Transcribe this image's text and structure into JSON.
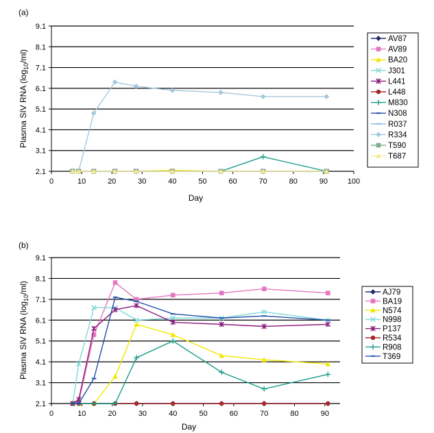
{
  "chart_data": [
    {
      "panel_label": "(a)",
      "type": "line",
      "xlabel": "Day",
      "ylabel": "Plasma SIV RNA (log10/ml)",
      "ylim": [
        2.1,
        9.1
      ],
      "xlim": [
        0,
        100
      ],
      "yticks": [
        "2.1",
        "3.1",
        "4.1",
        "5.1",
        "6.1",
        "7.1",
        "8.1",
        "9.1"
      ],
      "xticks": [
        "0",
        "10",
        "20",
        "30",
        "40",
        "50",
        "60",
        "70",
        "80",
        "90",
        "100"
      ],
      "grid": "horizontal",
      "legend_position": "right",
      "series": [
        {
          "name": "AV87",
          "color": "#1f2a6b",
          "marker": "diamond",
          "x": [
            7,
            9,
            14,
            21,
            28,
            40,
            56,
            70,
            91
          ],
          "y": [
            2.1,
            2.1,
            2.1,
            2.1,
            2.1,
            2.1,
            2.1,
            2.1,
            2.1
          ]
        },
        {
          "name": "AV89",
          "color": "#e377c2",
          "marker": "square",
          "x": [
            7,
            9,
            14,
            21,
            28,
            40,
            56,
            70,
            91
          ],
          "y": [
            2.1,
            2.1,
            2.1,
            2.1,
            2.1,
            2.1,
            2.1,
            2.1,
            2.1
          ]
        },
        {
          "name": "BA20",
          "color": "#f2e600",
          "marker": "triangle",
          "x": [
            7,
            9,
            14,
            21,
            28,
            40,
            56,
            70,
            91
          ],
          "y": [
            2.1,
            2.1,
            2.1,
            2.1,
            2.1,
            2.15,
            2.1,
            2.1,
            2.1
          ]
        },
        {
          "name": "J301",
          "color": "#7fd8d8",
          "marker": "x",
          "x": [
            7,
            9,
            14,
            21,
            28,
            40,
            56,
            70,
            91
          ],
          "y": [
            2.1,
            2.1,
            2.1,
            2.1,
            2.1,
            2.1,
            2.1,
            2.1,
            2.1
          ]
        },
        {
          "name": "L441",
          "color": "#8b1a7a",
          "marker": "star",
          "x": [
            7,
            9,
            14,
            21,
            28,
            40,
            56,
            70,
            91
          ],
          "y": [
            2.1,
            2.1,
            2.1,
            2.1,
            2.1,
            2.1,
            2.1,
            2.1,
            2.1
          ]
        },
        {
          "name": "L448",
          "color": "#a52a2a",
          "marker": "circle",
          "x": [
            7,
            9,
            14,
            21,
            28,
            40,
            56,
            70,
            91
          ],
          "y": [
            2.1,
            2.1,
            2.1,
            2.1,
            2.1,
            2.1,
            2.1,
            2.1,
            2.1
          ]
        },
        {
          "name": "M830",
          "color": "#1a9a8a",
          "marker": "plus",
          "x": [
            7,
            9,
            14,
            21,
            28,
            40,
            56,
            70,
            91
          ],
          "y": [
            2.1,
            2.1,
            2.1,
            2.1,
            2.1,
            2.1,
            2.1,
            2.8,
            2.1
          ]
        },
        {
          "name": "N308",
          "color": "#1f4fa8",
          "marker": "dash",
          "x": [
            7,
            9,
            14,
            21,
            28,
            40,
            56,
            70,
            91
          ],
          "y": [
            2.1,
            2.1,
            2.1,
            2.1,
            2.1,
            2.1,
            2.1,
            2.1,
            2.1
          ]
        },
        {
          "name": "R037",
          "color": "#8ab4e8",
          "marker": "dash",
          "x": [
            7,
            9,
            14,
            21,
            28,
            40,
            56,
            70,
            91
          ],
          "y": [
            2.1,
            2.1,
            2.1,
            2.1,
            2.1,
            2.1,
            2.1,
            2.1,
            2.1
          ]
        },
        {
          "name": "R334",
          "color": "#a6c8dc",
          "marker": "diamond",
          "x": [
            7,
            9,
            14,
            21,
            28,
            40,
            56,
            70,
            91
          ],
          "y": [
            2.1,
            2.1,
            4.9,
            6.4,
            6.2,
            6.0,
            5.9,
            5.7,
            5.7
          ]
        },
        {
          "name": "T590",
          "color": "#7fae8a",
          "marker": "square",
          "x": [
            7,
            9,
            14,
            21,
            28,
            40,
            56,
            70,
            91
          ],
          "y": [
            2.1,
            2.1,
            2.1,
            2.1,
            2.1,
            2.1,
            2.1,
            2.1,
            2.1
          ]
        },
        {
          "name": "T687",
          "color": "#f5e99a",
          "marker": "triangle",
          "x": [
            7,
            9,
            14,
            21,
            28,
            40,
            56,
            70,
            91
          ],
          "y": [
            2.1,
            2.1,
            2.1,
            2.1,
            2.1,
            2.1,
            2.1,
            2.1,
            2.1
          ]
        }
      ]
    },
    {
      "panel_label": "(b)",
      "type": "line",
      "xlabel": "Day",
      "ylabel": "Plasma SIV RNA (log10/ml)",
      "ylim": [
        2.1,
        9.1
      ],
      "xlim": [
        0,
        95
      ],
      "yticks": [
        "2.1",
        "3.1",
        "4.1",
        "5.1",
        "6.1",
        "7.1",
        "8.1",
        "9.1"
      ],
      "xticks": [
        "0",
        "10",
        "20",
        "30",
        "40",
        "50",
        "60",
        "70",
        "80",
        "90"
      ],
      "grid": "horizontal",
      "legend_position": "right",
      "series": [
        {
          "name": "AJ79",
          "color": "#1f2a6b",
          "marker": "diamond",
          "x": [
            7,
            9,
            14,
            21,
            28,
            40,
            56,
            70,
            91
          ],
          "y": [
            2.1,
            2.1,
            2.1,
            2.1,
            2.1,
            2.1,
            2.1,
            2.1,
            2.1
          ]
        },
        {
          "name": "BA19",
          "color": "#e377c2",
          "marker": "square",
          "x": [
            7,
            9,
            14,
            21,
            28,
            40,
            56,
            70,
            91
          ],
          "y": [
            2.1,
            2.2,
            5.4,
            7.9,
            7.1,
            7.3,
            7.4,
            7.6,
            7.4
          ]
        },
        {
          "name": "N574",
          "color": "#f2e600",
          "marker": "triangle",
          "x": [
            7,
            9,
            14,
            21,
            28,
            40,
            56,
            70,
            91
          ],
          "y": [
            2.1,
            2.1,
            2.1,
            3.4,
            5.9,
            5.4,
            4.4,
            4.2,
            4.0
          ]
        },
        {
          "name": "N998",
          "color": "#7fd8d8",
          "marker": "x",
          "x": [
            7,
            9,
            14,
            21,
            28,
            40,
            56,
            70,
            91
          ],
          "y": [
            2.1,
            4.0,
            6.7,
            6.7,
            6.1,
            6.2,
            6.2,
            6.5,
            6.1
          ]
        },
        {
          "name": "P137",
          "color": "#8b1a7a",
          "marker": "star",
          "x": [
            7,
            9,
            14,
            21,
            28,
            40,
            56,
            70,
            91
          ],
          "y": [
            2.1,
            2.3,
            5.7,
            6.6,
            6.8,
            6.0,
            5.9,
            5.8,
            5.9
          ]
        },
        {
          "name": "R534",
          "color": "#a52a2a",
          "marker": "circle",
          "x": [
            7,
            9,
            14,
            21,
            28,
            40,
            56,
            70,
            91
          ],
          "y": [
            2.1,
            2.1,
            2.1,
            2.1,
            2.1,
            2.1,
            2.1,
            2.1,
            2.1
          ]
        },
        {
          "name": "R908",
          "color": "#1a9a8a",
          "marker": "plus",
          "x": [
            7,
            9,
            14,
            21,
            28,
            40,
            56,
            70,
            91
          ],
          "y": [
            2.1,
            2.1,
            2.1,
            2.1,
            4.3,
            5.1,
            3.6,
            2.8,
            3.5
          ]
        },
        {
          "name": "T369",
          "color": "#1f4fa8",
          "marker": "dash",
          "x": [
            7,
            9,
            14,
            21,
            28,
            40,
            56,
            70,
            91
          ],
          "y": [
            2.1,
            2.1,
            3.3,
            7.2,
            7.0,
            6.4,
            6.2,
            6.3,
            6.1
          ]
        }
      ]
    }
  ]
}
